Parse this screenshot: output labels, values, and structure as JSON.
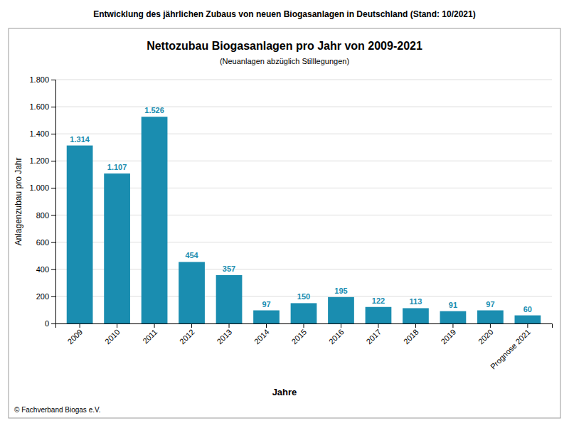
{
  "chart_data": {
    "type": "bar",
    "super_title": "Entwicklung des jährlichen Zubaus von neuen Biogasanlagen in Deutschland (Stand: 10/2021)",
    "title": "Nettozubau Biogasanlagen pro Jahr von 2009-2021",
    "subtitle": "(Neuanlagen abzüglich Stilllegungen)",
    "xlabel": "Jahre",
    "ylabel": "Anlagenzubau pro Jahr",
    "footer": "© Fachverband Biogas e.V.",
    "categories": [
      "2009",
      "2010",
      "2011",
      "2012",
      "2013",
      "2014",
      "2015",
      "2016",
      "2017",
      "2018",
      "2019",
      "2020",
      "Prognose 2021"
    ],
    "values": [
      1314,
      1107,
      1526,
      454,
      357,
      97,
      150,
      195,
      122,
      113,
      91,
      97,
      60
    ],
    "value_labels": [
      "1.314",
      "1.107",
      "1.526",
      "454",
      "357",
      "97",
      "150",
      "195",
      "122",
      "113",
      "91",
      "97",
      "60"
    ],
    "data_labels": true,
    "color": "#1a8db0",
    "ylim": [
      0,
      1800
    ],
    "yticks": [
      0,
      200,
      400,
      600,
      800,
      {
        "value": 1000,
        "label": "1.000"
      },
      {
        "value": 1200,
        "label": "1.200"
      },
      {
        "value": 1400,
        "label": "1.400"
      },
      {
        "value": 1600,
        "label": "1.600"
      },
      {
        "value": 1800,
        "label": "1.800"
      }
    ],
    "grid": true
  }
}
